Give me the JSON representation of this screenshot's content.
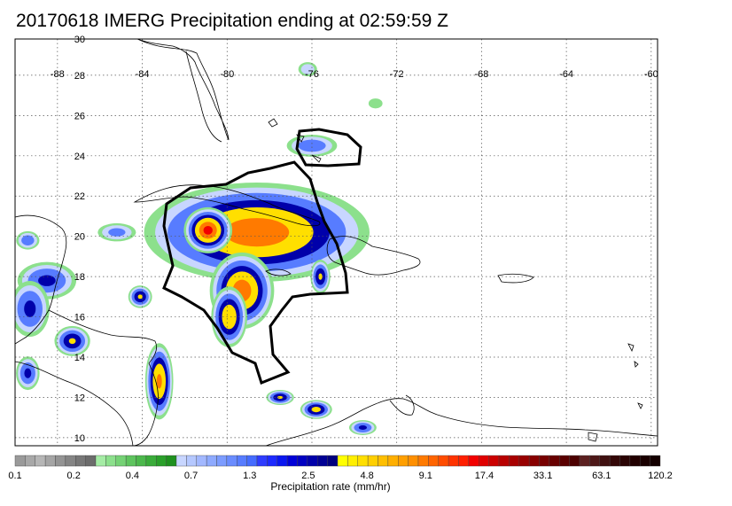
{
  "title": "20170618 IMERG Precipitation ending at 02:59:59 Z",
  "map": {
    "lon_min": -90,
    "lon_max": -59.7,
    "lat_min": 9.6,
    "lat_max": 29.8,
    "lon_ticks": [
      {
        "value": -88,
        "label": "-88"
      },
      {
        "value": -84,
        "label": "-84"
      },
      {
        "value": -80,
        "label": "-80"
      },
      {
        "value": -76,
        "label": "-76"
      },
      {
        "value": -72,
        "label": "-72"
      },
      {
        "value": -68,
        "label": "-68"
      },
      {
        "value": -64,
        "label": "-64"
      },
      {
        "value": -60,
        "label": "-60"
      }
    ],
    "lat_ticks": [
      {
        "value": 30,
        "label": "30"
      },
      {
        "value": 28,
        "label": "28"
      },
      {
        "value": 26,
        "label": "26"
      },
      {
        "value": 24,
        "label": "24"
      },
      {
        "value": 22,
        "label": "22"
      },
      {
        "value": 20,
        "label": "20"
      },
      {
        "value": 18,
        "label": "18"
      },
      {
        "value": 16,
        "label": "16"
      },
      {
        "value": 14,
        "label": "14"
      },
      {
        "value": 12,
        "label": "12"
      },
      {
        "value": 10,
        "label": "10"
      }
    ],
    "grid": "dotted"
  },
  "colorbar": {
    "label": "Precipitation rate (mm/hr)",
    "tick_labels": [
      "0.1",
      "0.2",
      "0.4",
      "0.7",
      "1.3",
      "2.5",
      "4.8",
      "9.1",
      "17.4",
      "33.1",
      "63.1",
      "120.2"
    ],
    "colors": [
      "#9a9a9a",
      "#a8a8a8",
      "#b6b6b6",
      "#a5a5a5",
      "#949494",
      "#858585",
      "#777777",
      "#6c6c6c",
      "#a5eca5",
      "#8ce08c",
      "#75d275",
      "#5ec45e",
      "#4cb84c",
      "#3aac3a",
      "#2aa02a",
      "#1f911f",
      "#c8d6ff",
      "#b5c8ff",
      "#a2b8ff",
      "#8eaaff",
      "#7c9cff",
      "#6a8cff",
      "#577cff",
      "#456cff",
      "#2e3cff",
      "#1d2aff",
      "#0a16f0",
      "#0000d8",
      "#0000c2",
      "#0000aa",
      "#000094",
      "#00007e",
      "#ffff00",
      "#ffef00",
      "#ffdf00",
      "#ffcf00",
      "#ffbf00",
      "#ffaf00",
      "#ff9f00",
      "#ff8f00",
      "#ff7a00",
      "#ff6400",
      "#ff4c00",
      "#ff3300",
      "#ff1f00",
      "#f20000",
      "#e00000",
      "#cc0000",
      "#b80000",
      "#a80000",
      "#980000",
      "#880000",
      "#780000",
      "#680000",
      "#5a0000",
      "#4c0000",
      "#5c2020",
      "#4e1818",
      "#401010",
      "#340808",
      "#2a0404",
      "#220000",
      "#1a0000",
      "#140000"
    ]
  },
  "precipitation_cells": [
    {
      "lon": -78.6,
      "lat": 20.2,
      "rx": 5.6,
      "ry": 2.6,
      "peak_mm_hr": 12.0
    },
    {
      "lon": -80.9,
      "lat": 20.3,
      "rx": 1.2,
      "ry": 1.2,
      "peak_mm_hr": 15.0
    },
    {
      "lon": -79.3,
      "lat": 17.3,
      "rx": 1.6,
      "ry": 2.0,
      "peak_mm_hr": 12.0
    },
    {
      "lon": -79.9,
      "lat": 16.0,
      "rx": 0.9,
      "ry": 1.6,
      "peak_mm_hr": 8.0
    },
    {
      "lon": -75.6,
      "lat": 18.0,
      "rx": 0.5,
      "ry": 0.9,
      "peak_mm_hr": 5.0
    },
    {
      "lon": -76.0,
      "lat": 24.5,
      "rx": 1.3,
      "ry": 0.6,
      "peak_mm_hr": 2.0
    },
    {
      "lon": -76.2,
      "lat": 28.3,
      "rx": 0.5,
      "ry": 0.4,
      "peak_mm_hr": 1.0
    },
    {
      "lon": -73.0,
      "lat": 26.6,
      "rx": 0.4,
      "ry": 0.3,
      "peak_mm_hr": 0.5
    },
    {
      "lon": -83.2,
      "lat": 12.8,
      "rx": 0.7,
      "ry": 2.0,
      "peak_mm_hr": 10.0
    },
    {
      "lon": -84.1,
      "lat": 17.0,
      "rx": 0.6,
      "ry": 0.6,
      "peak_mm_hr": 5.0
    },
    {
      "lon": -88.5,
      "lat": 17.8,
      "rx": 1.5,
      "ry": 1.0,
      "peak_mm_hr": 3.0
    },
    {
      "lon": -89.3,
      "lat": 16.4,
      "rx": 1.0,
      "ry": 1.5,
      "peak_mm_hr": 3.0
    },
    {
      "lon": -87.3,
      "lat": 14.8,
      "rx": 0.9,
      "ry": 0.8,
      "peak_mm_hr": 5.0
    },
    {
      "lon": -89.4,
      "lat": 13.2,
      "rx": 0.6,
      "ry": 0.9,
      "peak_mm_hr": 3.0
    },
    {
      "lon": -77.5,
      "lat": 12.0,
      "rx": 0.7,
      "ry": 0.4,
      "peak_mm_hr": 5.0
    },
    {
      "lon": -75.8,
      "lat": 11.4,
      "rx": 0.8,
      "ry": 0.5,
      "peak_mm_hr": 6.0
    },
    {
      "lon": -73.6,
      "lat": 10.5,
      "rx": 0.7,
      "ry": 0.4,
      "peak_mm_hr": 3.0
    },
    {
      "lon": -85.2,
      "lat": 20.2,
      "rx": 1.0,
      "ry": 0.5,
      "peak_mm_hr": 1.5
    },
    {
      "lon": -89.4,
      "lat": 19.8,
      "rx": 0.6,
      "ry": 0.5,
      "peak_mm_hr": 2.0
    }
  ]
}
